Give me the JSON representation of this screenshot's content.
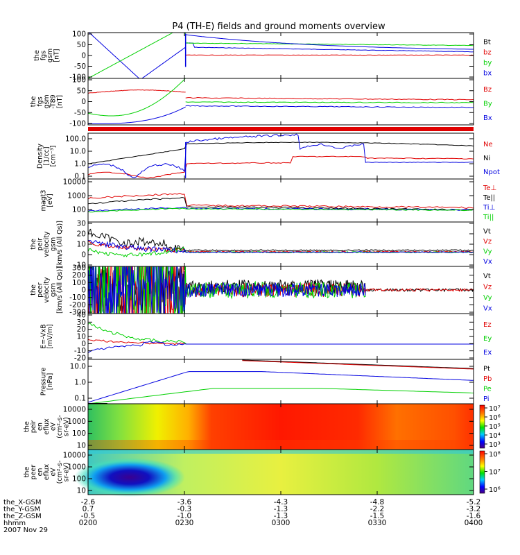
{
  "title": "P4 (TH-E) fields and ground moments overview",
  "colors": {
    "black": "#000000",
    "red": "#e00000",
    "green": "#00d000",
    "blue": "#0000e0"
  },
  "chart_data": {
    "type": "line",
    "x_ticks": [
      "0200",
      "0230",
      "0300",
      "0330",
      "0400"
    ],
    "ephemeris": [
      {
        "label": "the_X-GSM",
        "values": [
          "-2.6",
          "-3.6",
          "-4.3",
          "-4.8",
          "-5.2"
        ]
      },
      {
        "label": "the_Y-GSM",
        "values": [
          "0.7",
          "-0.3",
          "-1.3",
          "-2.2",
          "-3.2"
        ]
      },
      {
        "label": "the_Z-GSM",
        "values": [
          "-0.5",
          "-1.0",
          "-1.3",
          "-1.5",
          "-1.6"
        ]
      },
      {
        "label": "hhmm",
        "values": [
          "0200",
          "0230",
          "0300",
          "0330",
          "0400"
        ]
      }
    ],
    "date": "2007 Nov 29",
    "panels": [
      {
        "id": "fgs",
        "ylabel": [
          "the",
          "fgs",
          "gsm",
          "[nT]"
        ],
        "scale": "linear",
        "ticks": [
          "100",
          "50",
          "0",
          "-50",
          "-100"
        ],
        "legend": [
          [
            "Bt",
            "black"
          ],
          [
            "bz",
            "red"
          ],
          [
            "by",
            "green"
          ],
          [
            "bx",
            "blue"
          ]
        ]
      },
      {
        "id": "fgs-t89",
        "ylabel": [
          "the",
          "fgs",
          "gsm",
          "-T89",
          "[nT]"
        ],
        "scale": "linear",
        "ticks": [
          "100",
          "50",
          "0",
          "-50",
          "-100"
        ],
        "legend": [
          [
            "Bz",
            "red"
          ],
          [
            "By",
            "green"
          ],
          [
            "Bx",
            "blue"
          ]
        ]
      },
      {
        "id": "density",
        "ylabel": [
          "Density",
          "[1/cc]",
          "[cm^-3]"
        ],
        "scale": "log",
        "ticks": [
          "100.0",
          "10.0",
          "1.0",
          "0.1"
        ],
        "legend": [
          [
            "Ne",
            "red"
          ],
          [
            "Ni",
            "black"
          ],
          [
            "Npot",
            "blue"
          ]
        ]
      },
      {
        "id": "temp",
        "ylabel": [
          "magt3",
          "[eV]"
        ],
        "scale": "log",
        "ticks": [
          "10000",
          "1000",
          "100"
        ],
        "legend": [
          [
            "Te⊥",
            "red"
          ],
          [
            "Te||",
            "black"
          ],
          [
            "Ti⊥",
            "blue"
          ],
          [
            "Ti||",
            "green"
          ]
        ]
      },
      {
        "id": "peir-vel",
        "ylabel": [
          "the",
          "peir",
          "velocity",
          "gsm",
          "[km/s (All Qs)]"
        ],
        "scale": "linear",
        "ticks": [
          "30",
          "20",
          "10",
          "0",
          "-10"
        ],
        "legend": [
          [
            "Vt",
            "black"
          ],
          [
            "Vz",
            "red"
          ],
          [
            "Vy",
            "green"
          ],
          [
            "Vx",
            "blue"
          ]
        ]
      },
      {
        "id": "peer-vel",
        "ylabel": [
          "the",
          "peer",
          "velocity",
          "gsm",
          "[km/s (All Qs)]"
        ],
        "scale": "linear",
        "ticks": [
          "300",
          "200",
          "100",
          "0",
          "-100",
          "-200",
          "-300"
        ],
        "legend": [
          [
            "Vt",
            "black"
          ],
          [
            "Vz",
            "red"
          ],
          [
            "Vy",
            "green"
          ],
          [
            "Vx",
            "blue"
          ]
        ]
      },
      {
        "id": "efield",
        "ylabel": [
          "E=-VxB",
          "[mV/m]"
        ],
        "scale": "linear",
        "ticks": [
          "40",
          "30",
          "20",
          "10",
          "0",
          "-10",
          "-20"
        ],
        "legend": [
          [
            "Ez",
            "red"
          ],
          [
            "Ey",
            "green"
          ],
          [
            "Ex",
            "blue"
          ]
        ]
      },
      {
        "id": "pressure",
        "ylabel": [
          "Pressure",
          "[nPa]"
        ],
        "scale": "log",
        "ticks": [
          "10.0",
          "1.0",
          "0.1"
        ],
        "legend": [
          [
            "Pt",
            "black"
          ],
          [
            "Pb",
            "red"
          ],
          [
            "Pe",
            "green"
          ],
          [
            "Pi",
            "blue"
          ]
        ]
      },
      {
        "id": "peir-flux",
        "ylabel": [
          "the",
          "peir",
          "en",
          "eflux",
          "eV",
          "(cm^2-s-",
          "sr-eV)"
        ],
        "scale": "log",
        "ticks": [
          "10000",
          "1000",
          "100",
          "10"
        ],
        "colorbar": [
          "10^7",
          "10^6",
          "10^5",
          "10^4",
          "10^3"
        ]
      },
      {
        "id": "peer-flux",
        "ylabel": [
          "the",
          "peer",
          "en",
          "eflux",
          "eV",
          "(cm^2-s-",
          "sr-eV)"
        ],
        "scale": "log",
        "ticks": [
          "10000",
          "1000",
          "100",
          "10"
        ],
        "colorbar": [
          "10^8",
          "10^7",
          "10^6"
        ]
      }
    ]
  }
}
